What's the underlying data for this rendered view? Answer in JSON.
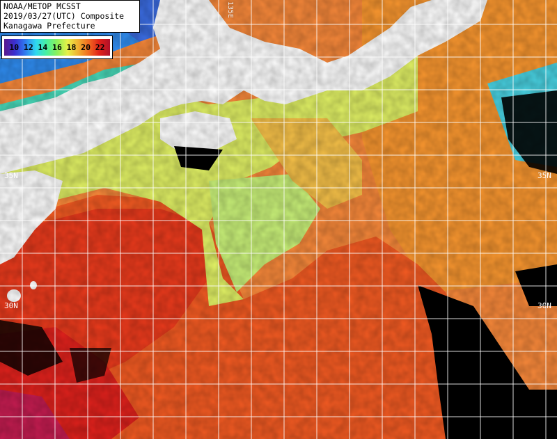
{
  "header": {
    "line1": "NOAA/METOP MCSST",
    "line2": "2019/03/27(UTC) Composite",
    "line3": "Kanagawa Prefecture"
  },
  "scale": {
    "labels": [
      "10",
      "12",
      "14",
      "16",
      "18",
      "20",
      "22"
    ]
  },
  "grid": {
    "lat_labels": {
      "n35_left": "35N",
      "n35_right": "35N",
      "n30_left": "30N",
      "n30_right": "30N"
    },
    "lon_labels": {
      "e135": "135E"
    }
  },
  "colors": {
    "land": "#ffffff",
    "cloud": "#000000",
    "warm": "#ff5a1e",
    "hot": "#e8201a",
    "mild": "#f6a83a",
    "cool": "#d8f060",
    "cold": "#3aa0f0"
  }
}
